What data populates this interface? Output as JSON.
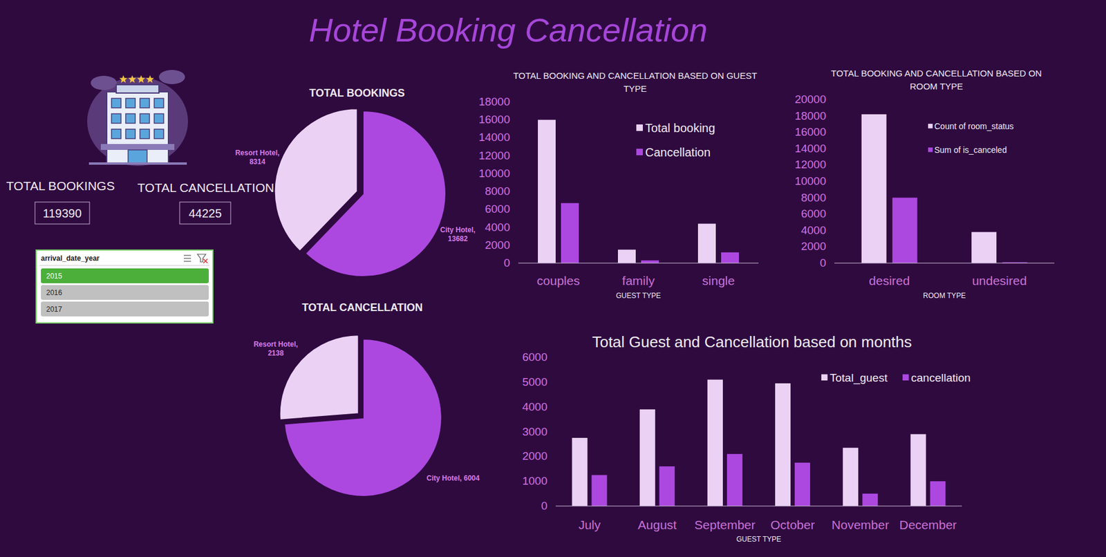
{
  "title": "Hotel Booking Cancellation",
  "kpis": [
    {
      "label": "TOTAL BOOKINGS",
      "value": 119390
    },
    {
      "label": "TOTAL CANCELLATION",
      "value": 44225
    }
  ],
  "slicer": {
    "title": "arrival_date_year",
    "items": [
      "2015",
      "2016",
      "2017"
    ],
    "selected": "2015"
  },
  "chart_data": [
    {
      "type": "pie",
      "title": "TOTAL BOOKINGS",
      "categories": [
        "City Hotel",
        "Resort Hotel"
      ],
      "values": [
        13682,
        8314
      ],
      "value_labels": [
        "City Hotel, 13682",
        "Resort Hotel, 8314"
      ],
      "colors": [
        "#ac48e0",
        "#ebd2f5"
      ],
      "data_labels": true
    },
    {
      "type": "pie",
      "title": "TOTAL CANCELLATION",
      "categories": [
        "City Hotel",
        "Resort Hotel"
      ],
      "values": [
        6004,
        2138
      ],
      "value_labels": [
        "City Hotel, 6004",
        "Resort Hotel, 2138"
      ],
      "colors": [
        "#ac48e0",
        "#ebd2f5"
      ],
      "data_labels": true
    },
    {
      "type": "bar",
      "title": "TOTAL BOOKING AND CANCELLATION BASED ON GUEST TYPE",
      "xlabel": "GUEST TYPE",
      "categories": [
        "couples",
        "family",
        "single"
      ],
      "series": [
        {
          "name": "Total booking",
          "color": "#ebd2f5",
          "values": [
            16000,
            1500,
            4400
          ]
        },
        {
          "name": "Cancellation",
          "color": "#ac48e0",
          "values": [
            6700,
            300,
            1200
          ]
        }
      ],
      "ylim": [
        0,
        18000
      ],
      "yticks": [
        0,
        2000,
        4000,
        6000,
        8000,
        10000,
        12000,
        14000,
        16000,
        18000
      ],
      "grid": false,
      "legend": "top-right"
    },
    {
      "type": "bar",
      "title": "TOTAL BOOKING AND CANCELLATION BASED ON ROOM TYPE",
      "xlabel": "ROOM TYPE",
      "categories": [
        "desired",
        "undesired"
      ],
      "series": [
        {
          "name": "Count of room_status",
          "color": "#ebd2f5",
          "values": [
            18200,
            3800
          ]
        },
        {
          "name": "Sum of is_canceled",
          "color": "#ac48e0",
          "values": [
            8000,
            100
          ]
        }
      ],
      "ylim": [
        0,
        20000
      ],
      "yticks": [
        0,
        2000,
        4000,
        6000,
        8000,
        10000,
        12000,
        14000,
        16000,
        18000,
        20000
      ],
      "grid": false,
      "legend": "top-right"
    },
    {
      "type": "bar",
      "title": "Total Guest and Cancellation based on months",
      "xlabel": "GUEST TYPE",
      "categories": [
        "July",
        "August",
        "September",
        "October",
        "November",
        "December"
      ],
      "series": [
        {
          "name": "Total_guest",
          "color": "#ebd2f5",
          "values": [
            2750,
            3900,
            5100,
            4950,
            2350,
            2900
          ]
        },
        {
          "name": "cancellation",
          "color": "#ac48e0",
          "values": [
            1250,
            1600,
            2100,
            1750,
            500,
            1000
          ]
        }
      ],
      "ylim": [
        0,
        6000
      ],
      "yticks": [
        0,
        1000,
        2000,
        3000,
        4000,
        5000,
        6000
      ],
      "grid": false,
      "legend": "top-right"
    }
  ]
}
